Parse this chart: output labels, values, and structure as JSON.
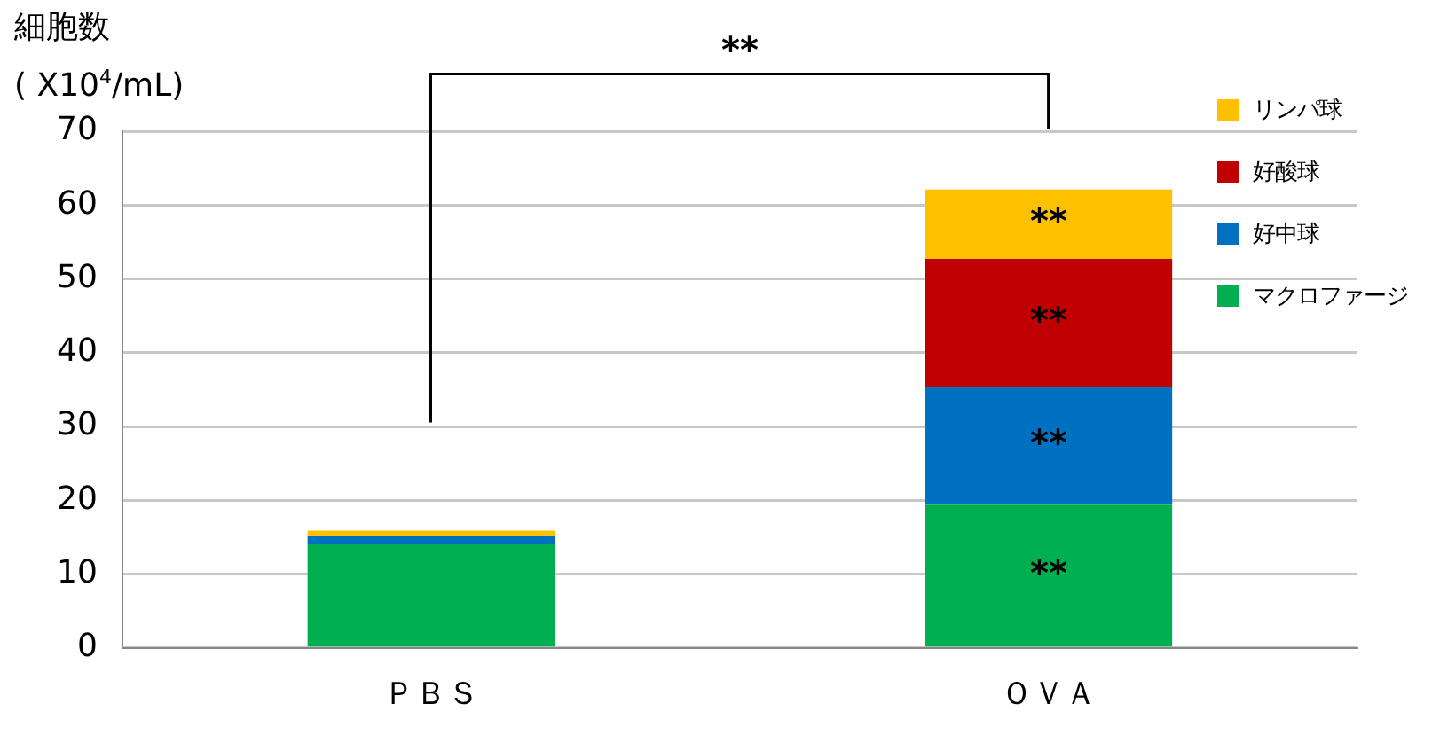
{
  "chart_data": {
    "type": "bar",
    "stacked": true,
    "ylabel": "細胞数\n( X10$^{4}$/mL)",
    "categories": [
      "ＰＢＳ",
      "ＯＶＡ"
    ],
    "series": [
      {
        "name": "マクロファージ",
        "color": "#00b050",
        "values": [
          14.1,
          19.4
        ]
      },
      {
        "name": "好中球",
        "color": "#0070c0",
        "values": [
          1.1,
          15.9
        ]
      },
      {
        "name": "好酸球",
        "color": "#c00000",
        "values": [
          0,
          17.4
        ]
      },
      {
        "name": "リンパ球",
        "color": "#ffc000",
        "values": [
          0.7,
          9.4
        ]
      }
    ],
    "ylim": [
      0,
      70
    ],
    "yticks": [
      0,
      10,
      20,
      30,
      40,
      50,
      60,
      70
    ],
    "grid": "y",
    "legend": "top right",
    "annotations": [
      "**",
      "**",
      "**",
      "**",
      "**"
    ]
  }
}
